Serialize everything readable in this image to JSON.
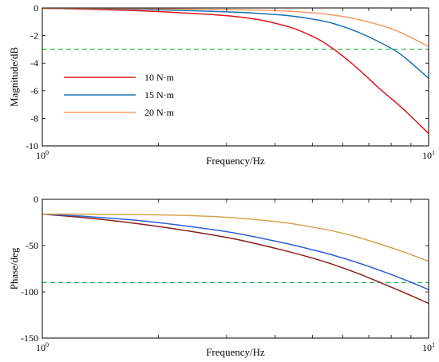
{
  "chart_data": [
    {
      "type": "line",
      "ylabel": "Magnitude/dB",
      "xlabel": "Frequency/Hz",
      "xscale": "log",
      "xlim": [
        1,
        10
      ],
      "ylim": [
        -10,
        0
      ],
      "yticks": [
        0,
        -2,
        -4,
        -6,
        -8,
        -10
      ],
      "xticks": [
        {
          "base": "10",
          "exp": "0"
        },
        {
          "base": "10",
          "exp": "1"
        }
      ],
      "legend_position": "center-left",
      "reference_line": {
        "y": -3,
        "color": "#2bb24c",
        "style": "dashed"
      },
      "series": [
        {
          "name": "10 N·m",
          "color": "#e0161c",
          "x": [
            1,
            1.78,
            3.16,
            4.2,
            5.0,
            5.62,
            6.5,
            7.5,
            8.5,
            10
          ],
          "y": [
            -0.02,
            -0.2,
            -0.62,
            -1.25,
            -2.05,
            -2.9,
            -4.3,
            -5.9,
            -7.2,
            -9.1
          ]
        },
        {
          "name": "15 N·m",
          "color": "#1874b0",
          "x": [
            1,
            1.78,
            3.16,
            4.2,
            5.0,
            5.62,
            6.5,
            7.5,
            8.5,
            10
          ],
          "y": [
            -0.02,
            -0.1,
            -0.3,
            -0.52,
            -0.8,
            -1.1,
            -1.7,
            -2.5,
            -3.4,
            -5.1
          ]
        },
        {
          "name": "20 N·m",
          "color": "#f59b66",
          "x": [
            1,
            1.78,
            3.16,
            4.2,
            5.0,
            5.62,
            6.5,
            7.5,
            8.5,
            10
          ],
          "y": [
            -0.02,
            -0.05,
            -0.12,
            -0.22,
            -0.35,
            -0.5,
            -0.8,
            -1.25,
            -1.8,
            -2.8
          ]
        }
      ]
    },
    {
      "type": "line",
      "ylabel": "Phase/deg",
      "xlabel": "Frequency/Hz",
      "xscale": "log",
      "xlim": [
        1,
        10
      ],
      "ylim": [
        -150,
        0
      ],
      "yticks": [
        0,
        -50,
        -100,
        -150
      ],
      "xticks": [
        {
          "base": "10",
          "exp": "0"
        },
        {
          "base": "10",
          "exp": "1"
        }
      ],
      "reference_line": {
        "y": -90,
        "color": "#2bb24c",
        "style": "dashed"
      },
      "series": [
        {
          "color": "#8b1f1a",
          "x": [
            1,
            1.3,
            1.78,
            2.37,
            3.16,
            4.2,
            5.0,
            5.62,
            6.5,
            7.5,
            8.5,
            10
          ],
          "y": [
            -16,
            -20,
            -26.5,
            -34,
            -43,
            -55,
            -63.5,
            -70,
            -79.5,
            -90,
            -99.5,
            -112.5
          ]
        },
        {
          "color": "#2f5fd6",
          "x": [
            1,
            1.3,
            1.78,
            2.37,
            3.16,
            4.2,
            5.0,
            5.62,
            6.5,
            7.5,
            8.5,
            10
          ],
          "y": [
            -16,
            -18.5,
            -23,
            -29,
            -36.5,
            -47,
            -54.5,
            -60,
            -68,
            -77,
            -85.5,
            -97.5
          ]
        },
        {
          "color": "#d4a44f",
          "x": [
            1,
            1.3,
            1.78,
            2.37,
            3.16,
            4.2,
            5.0,
            5.62,
            6.5,
            7.5,
            8.5,
            10
          ],
          "y": [
            -16,
            -16,
            -16.5,
            -17.5,
            -20,
            -25,
            -30,
            -34,
            -40.5,
            -48.5,
            -56,
            -67
          ]
        }
      ]
    }
  ]
}
